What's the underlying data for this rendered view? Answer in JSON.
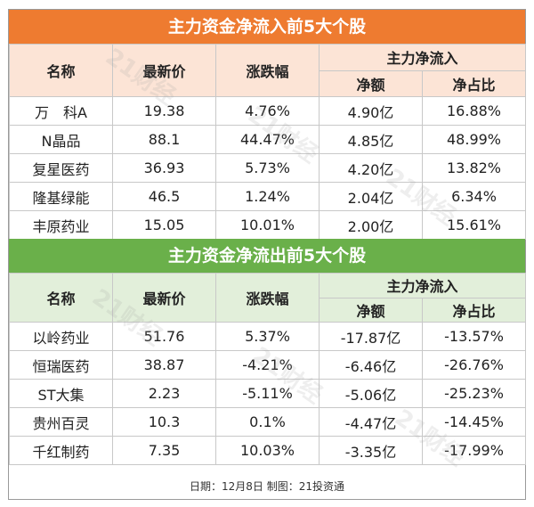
{
  "inflow": {
    "title": "主力资金净流入前5大个股",
    "headers": {
      "name": "名称",
      "price": "最新价",
      "change": "涨跌幅",
      "group": "主力净流入",
      "net": "净额",
      "ratio": "净占比"
    },
    "rows": [
      {
        "name": "万　科A",
        "price": "19.38",
        "change": "4.76%",
        "net": "4.90亿",
        "ratio": "16.88%"
      },
      {
        "name": "N晶品",
        "price": "88.1",
        "change": "44.47%",
        "net": "4.85亿",
        "ratio": "48.99%"
      },
      {
        "name": "复星医药",
        "price": "36.93",
        "change": "5.73%",
        "net": "4.20亿",
        "ratio": "13.82%"
      },
      {
        "name": "隆基绿能",
        "price": "46.5",
        "change": "1.24%",
        "net": "2.04亿",
        "ratio": "6.34%"
      },
      {
        "name": "丰原药业",
        "price": "15.05",
        "change": "10.01%",
        "net": "2.00亿",
        "ratio": "15.61%"
      }
    ]
  },
  "outflow": {
    "title": "主力资金净流出前5大个股",
    "headers": {
      "name": "名称",
      "price": "最新价",
      "change": "涨跌幅",
      "group": "主力净流入",
      "net": "净额",
      "ratio": "净占比"
    },
    "rows": [
      {
        "name": "以岭药业",
        "price": "51.76",
        "change": "5.37%",
        "net": "-17.87亿",
        "ratio": "-13.57%"
      },
      {
        "name": "恒瑞医药",
        "price": "38.87",
        "change": "-4.21%",
        "net": "-6.46亿",
        "ratio": "-26.76%"
      },
      {
        "name": "ST大集",
        "price": "2.23",
        "change": "-5.11%",
        "net": "-5.06亿",
        "ratio": "-25.23%"
      },
      {
        "name": "贵州百灵",
        "price": "10.3",
        "change": "0.1%",
        "net": "-4.47亿",
        "ratio": "-14.45%"
      },
      {
        "name": "千红制药",
        "price": "7.35",
        "change": "10.03%",
        "net": "-3.35亿",
        "ratio": "-17.99%"
      }
    ]
  },
  "footer": "日期：12月8日 制图：21投资通",
  "watermark": "21财经",
  "colors": {
    "orange": "#ee7b30",
    "green": "#6ab04a",
    "orange_header": "#fce4d6",
    "green_header": "#e2efda"
  }
}
